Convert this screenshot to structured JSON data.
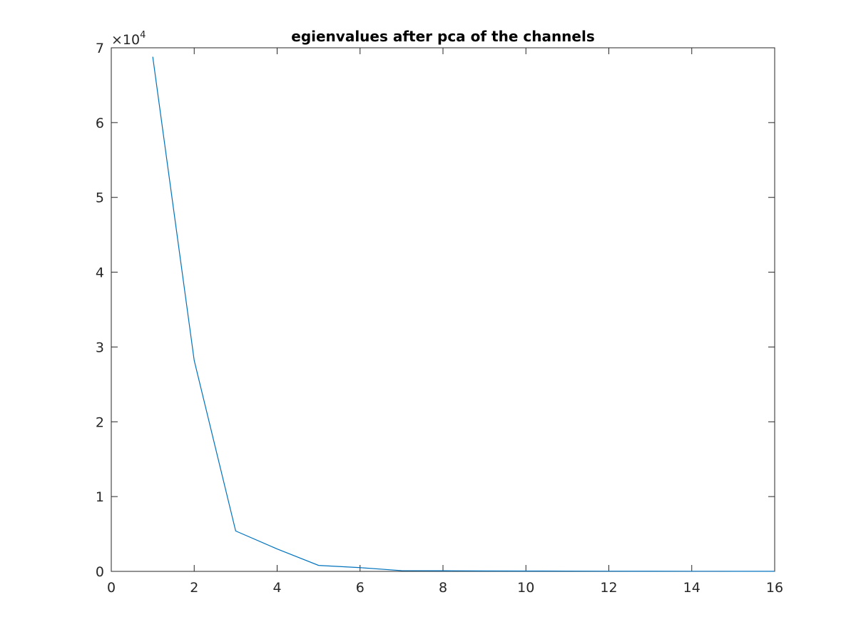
{
  "chart_data": {
    "type": "line",
    "title": "egienvalues after pca of the channels",
    "xlabel": "",
    "ylabel": "",
    "xlim": [
      0,
      16
    ],
    "ylim": [
      0,
      70000
    ],
    "x_ticks": [
      "0",
      "2",
      "4",
      "6",
      "8",
      "10",
      "12",
      "14",
      "16"
    ],
    "y_ticks": [
      "0",
      "1",
      "2",
      "3",
      "4",
      "5",
      "6",
      "7"
    ],
    "y_multiplier": {
      "base": "×10",
      "exponent": "4"
    },
    "grid": false,
    "colors": {
      "line": "#0072bd",
      "axis": "#262626"
    },
    "series": [
      {
        "x": [
          1,
          2,
          3,
          4,
          5,
          6,
          7,
          8,
          9,
          10,
          11,
          12,
          13,
          14,
          15,
          16
        ],
        "y": [
          68800,
          28200,
          5400,
          3000,
          800,
          500,
          100,
          80,
          60,
          50,
          40,
          30,
          25,
          20,
          15,
          10
        ]
      }
    ]
  }
}
